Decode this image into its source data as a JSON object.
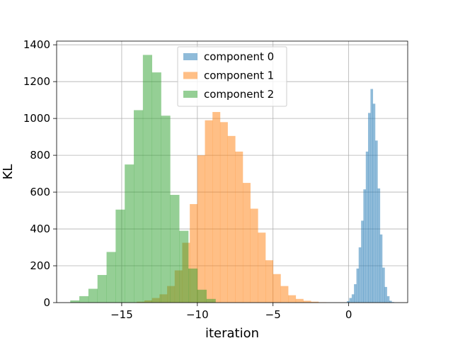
{
  "chart_data": {
    "type": "histogram",
    "title": "",
    "xlabel": "iteration",
    "ylabel": "KL",
    "xlim": [
      -19.3,
      3.9
    ],
    "ylim": [
      0,
      1420
    ],
    "xticks": [
      -15,
      -10,
      -5,
      0
    ],
    "xtick_labels": [
      "−15",
      "−10",
      "−5",
      "0"
    ],
    "yticks": [
      0,
      200,
      400,
      600,
      800,
      1000,
      1200,
      1400
    ],
    "ytick_labels": [
      "0",
      "200",
      "400",
      "600",
      "800",
      "1000",
      "1200",
      "1400"
    ],
    "grid": true,
    "legend_position": "upper center",
    "series": [
      {
        "name": "component 0",
        "color": "#1f77b4",
        "opacity": 0.5,
        "bin_width": 0.156,
        "bins": [
          [
            -0.12,
            8
          ],
          [
            0.04,
            25
          ],
          [
            0.2,
            45
          ],
          [
            0.35,
            100
          ],
          [
            0.51,
            185
          ],
          [
            0.66,
            300
          ],
          [
            0.82,
            445
          ],
          [
            0.97,
            615
          ],
          [
            1.13,
            820
          ],
          [
            1.28,
            1030
          ],
          [
            1.44,
            1160
          ],
          [
            1.59,
            1080
          ],
          [
            1.75,
            880
          ],
          [
            1.91,
            620
          ],
          [
            2.06,
            370
          ],
          [
            2.22,
            190
          ],
          [
            2.37,
            85
          ],
          [
            2.53,
            35
          ],
          [
            2.68,
            10
          ],
          [
            2.84,
            3
          ]
        ]
      },
      {
        "name": "component 1",
        "color": "#ff7f0e",
        "opacity": 0.5,
        "bin_width": 0.5,
        "bins": [
          [
            -14.0,
            5
          ],
          [
            -13.5,
            12
          ],
          [
            -13.0,
            25
          ],
          [
            -12.5,
            45
          ],
          [
            -12.0,
            90
          ],
          [
            -11.5,
            175
          ],
          [
            -11.0,
            325
          ],
          [
            -10.5,
            535
          ],
          [
            -10.0,
            800
          ],
          [
            -9.5,
            990
          ],
          [
            -9.0,
            1035
          ],
          [
            -8.5,
            980
          ],
          [
            -8.0,
            905
          ],
          [
            -7.5,
            820
          ],
          [
            -7.0,
            650
          ],
          [
            -6.5,
            510
          ],
          [
            -6.0,
            380
          ],
          [
            -5.5,
            230
          ],
          [
            -5.0,
            155
          ],
          [
            -4.5,
            90
          ],
          [
            -4.0,
            40
          ],
          [
            -3.5,
            20
          ],
          [
            -3.0,
            10
          ],
          [
            -2.5,
            5
          ],
          [
            -2.0,
            2
          ]
        ]
      },
      {
        "name": "component 2",
        "color": "#2ca02c",
        "opacity": 0.5,
        "bin_width": 0.6,
        "bins": [
          [
            -18.4,
            12
          ],
          [
            -17.8,
            35
          ],
          [
            -17.2,
            75
          ],
          [
            -16.6,
            150
          ],
          [
            -16.0,
            275
          ],
          [
            -15.4,
            505
          ],
          [
            -14.8,
            750
          ],
          [
            -14.2,
            1045
          ],
          [
            -13.6,
            1345
          ],
          [
            -13.0,
            1250
          ],
          [
            -12.4,
            1015
          ],
          [
            -11.8,
            585
          ],
          [
            -11.2,
            390
          ],
          [
            -10.6,
            185
          ],
          [
            -10.0,
            70
          ],
          [
            -9.4,
            20
          ]
        ]
      }
    ]
  }
}
